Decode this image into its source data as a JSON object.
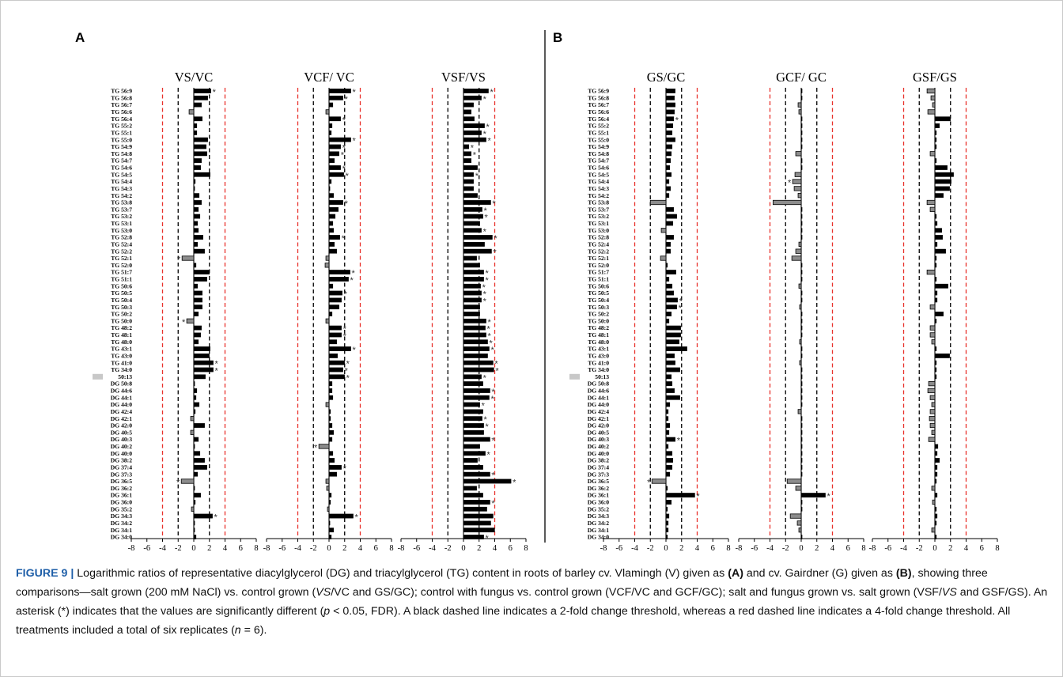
{
  "panels": [
    {
      "letter": "A"
    },
    {
      "letter": "B"
    }
  ],
  "caption": {
    "label": "FIGURE 9 |",
    "t1": " Logarithmic ratios of representative diacylglycerol (DG) and triacylglycerol (TG) content in roots of barley cv. Vlamingh (V) given as ",
    "b1": "(A)",
    "t2": " and cv. Gairdner (G) given as ",
    "b2": "(B)",
    "t3": ", showing three comparisons—salt grown (200 mM NaCl) vs. control grown (",
    "i1": "VS",
    "t4": "/VC and GS/GC); control with fungus vs. control grown (VCF/VC and GCF/GC); salt and fungus grown vs. salt grown (VSF/",
    "i2": "VS",
    "t5": " and GSF/GS). An asterisk (*) indicates that the values are significantly different (",
    "i3": "p",
    "t6": " < 0.05, FDR). A black dashed line indicates a 2-fold change threshold, whereas a red dashed line indicates a 4-fold change threshold. All treatments included a total of six replicates (",
    "i4": "n",
    "t7": " = 6)."
  },
  "colors": {
    "sig_bar": "#000000",
    "nonsig_bar": "#8c8c8c",
    "threshold_2fold": "#000000",
    "threshold_4fold": "#e8312b"
  },
  "chart_data": [
    {
      "type": "bar",
      "orientation": "horizontal",
      "panel": "A",
      "categories_A": [
        "TG 56:9",
        "TG 56:8",
        "TG 56:7",
        "TG 56:6",
        "TG 56:4",
        "TG 55:2",
        "TG 55:1",
        "TG 55:0",
        "TG 54:9",
        "TG 54:8",
        "TG 54:7",
        "TG 54:6",
        "TG 54:5",
        "TG 54:4",
        "TG 54:3",
        "TG 54:2",
        "TG 53:8",
        "TG 53:7",
        "TG 53:2",
        "TG 53:1",
        "TG 53:0",
        "TG 52:8",
        "TG 52:4",
        "TG 52:2",
        "TG 52:1",
        "TG 52:0",
        "TG 51:7",
        "TG 51:1",
        "TG 50:6",
        "TG 50:5",
        "TG 50:4",
        "TG 50:3",
        "TG 50:2",
        "TG 50:0",
        "TG 48:2",
        "TG 48:1",
        "TG 48:0",
        "TG 43:1",
        "TG 43:0",
        "TG 41:0",
        "TG 34:0",
        "50:13",
        "DG 50:8",
        "DG 44:6",
        "DG 44:1",
        "DG 44:0",
        "DG 42:4",
        "DG 42:1",
        "DG 42:0",
        "DG 40:5",
        "DG 40:3",
        "DG 40:2",
        "DG 40:0",
        "DG 38:2",
        "DG 37:4",
        "DG 37:3",
        "DG 36:5",
        "DG 36:2",
        "DG 36:1",
        "DG 36:0",
        "DG 35:2",
        "DG 34:3",
        "DG 34:2",
        "DG 34:1",
        "DG 34:0"
      ],
      "xlim": [
        -8,
        8
      ],
      "xticks": [
        -8,
        -6,
        -4,
        -2,
        0,
        2,
        4,
        6,
        8
      ],
      "thresholds": {
        "two_fold": [
          -2,
          2
        ],
        "four_fold": [
          -4,
          4
        ]
      },
      "subplots": [
        {
          "title": "VS/VC",
          "values": [
            2.2,
            1.8,
            1.0,
            -0.6,
            1.1,
            0.4,
            0.4,
            1.8,
            1.6,
            1.7,
            1.0,
            0.9,
            2.1,
            0.2,
            0.1,
            0.7,
            1.0,
            0.6,
            0.8,
            0.5,
            0.6,
            1.2,
            0.5,
            1.4,
            -1.5,
            0.3,
            2.0,
            1.7,
            0.5,
            1.1,
            1.1,
            1.1,
            0.6,
            -0.9,
            1.0,
            0.9,
            0.6,
            2.1,
            2.0,
            2.5,
            2.5,
            1.5,
            0.1,
            0.4,
            0.3,
            0.7,
            0.2,
            -0.4,
            1.4,
            -0.4,
            0.6,
            0.1,
            0.8,
            1.4,
            1.7,
            0.5,
            -1.6,
            0.1,
            0.9,
            0.2,
            -0.3,
            2.4,
            0.1,
            0.1,
            0.3
          ],
          "sig": [
            1,
            0,
            0,
            0,
            0,
            0,
            0,
            0,
            0,
            0,
            0,
            0,
            0,
            0,
            0,
            0,
            0,
            0,
            0,
            0,
            0,
            0,
            0,
            0,
            1,
            0,
            0,
            0,
            0,
            0,
            0,
            0,
            0,
            1,
            0,
            0,
            0,
            0,
            0,
            1,
            1,
            0,
            0,
            0,
            0,
            0,
            0,
            0,
            0,
            0,
            0,
            0,
            0,
            0,
            0,
            0,
            1,
            0,
            0,
            0,
            0,
            1,
            0,
            0,
            0
          ]
        },
        {
          "title": "VCF/ VC",
          "values": [
            2.8,
            1.8,
            0.5,
            -0.4,
            1.5,
            0.4,
            0.3,
            2.8,
            1.5,
            1.3,
            0.7,
            1.5,
            1.9,
            0.3,
            0.1,
            0.6,
            1.8,
            1.2,
            0.8,
            0.5,
            0.6,
            1.4,
            0.7,
            1.0,
            -0.4,
            -0.5,
            2.7,
            2.5,
            0.5,
            1.7,
            1.6,
            1.3,
            0.4,
            -0.4,
            1.6,
            1.6,
            1.0,
            2.8,
            1.1,
            2.0,
            1.8,
            2.0,
            0.4,
            0.4,
            0.5,
            -0.4,
            0.2,
            0.2,
            0.4,
            0.6,
            0.4,
            -1.3,
            0.5,
            0.7,
            1.6,
            1.0,
            -0.4,
            -0.3,
            0.3,
            0.2,
            -0.2,
            3.1,
            0.1,
            0.6,
            0.3
          ],
          "sig": [
            1,
            1,
            0,
            0,
            1,
            0,
            0,
            1,
            1,
            1,
            0,
            1,
            1,
            0,
            0,
            0,
            1,
            0,
            0,
            0,
            0,
            1,
            0,
            0,
            0,
            0,
            1,
            1,
            0,
            1,
            0,
            0,
            0,
            0,
            1,
            1,
            0,
            1,
            0,
            1,
            1,
            1,
            0,
            0,
            0,
            0,
            0,
            0,
            0,
            0,
            0,
            1,
            0,
            0,
            1,
            0,
            0,
            0,
            0,
            0,
            0,
            1,
            0,
            0,
            0
          ]
        },
        {
          "title": "VSF/VS",
          "values": [
            3.2,
            2.3,
            1.3,
            1.0,
            1.4,
            2.7,
            2.3,
            2.9,
            0.7,
            1.0,
            1.0,
            1.8,
            1.3,
            1.3,
            1.3,
            1.8,
            3.5,
            2.4,
            2.5,
            2.1,
            2.3,
            3.7,
            2.7,
            3.6,
            1.7,
            2.1,
            2.6,
            2.6,
            2.2,
            2.3,
            2.3,
            2.1,
            2.1,
            2.9,
            2.8,
            2.9,
            3.1,
            3.3,
            3.1,
            3.8,
            3.9,
            2.3,
            2.5,
            3.4,
            3.3,
            2.1,
            2.5,
            2.4,
            2.6,
            2.6,
            3.4,
            2.1,
            2.8,
            1.8,
            2.5,
            3.4,
            6.1,
            1.7,
            2.5,
            3.4,
            3.0,
            3.8,
            3.5,
            4.0,
            2.6
          ],
          "sig": [
            1,
            1,
            0,
            0,
            0,
            1,
            1,
            1,
            1,
            1,
            0,
            0,
            1,
            0,
            0,
            0,
            1,
            1,
            1,
            0,
            1,
            1,
            0,
            1,
            0,
            0,
            1,
            1,
            1,
            1,
            1,
            0,
            0,
            1,
            1,
            1,
            1,
            1,
            0,
            1,
            1,
            1,
            0,
            1,
            1,
            1,
            0,
            1,
            1,
            0,
            1,
            0,
            1,
            0,
            0,
            1,
            1,
            0,
            0,
            1,
            0,
            0,
            0,
            0,
            1
          ]
        }
      ]
    },
    {
      "type": "bar",
      "orientation": "horizontal",
      "panel": "B",
      "categories_B": [
        "TG 56:9",
        "TG 56:8",
        "TG 56:7",
        "TG 56:6",
        "TG 56:4",
        "TG 55:2",
        "TG 55:1",
        "TG 55:0",
        "TG 54:9",
        "TG 54:8",
        "TG 54:7",
        "TG 54:6",
        "TG 54:5",
        "TG 54:4",
        "TG 54:3",
        "TG 54:2",
        "TG 53:8",
        "TG 53:7",
        "TG 53:2",
        "TG 53:1",
        "TG 53:0",
        "TG 52:8",
        "TG 52:4",
        "TG 52:2",
        "TG 52:1",
        "TG 52:0",
        "TG 51:7",
        "TG 51:1",
        "TG 50:6",
        "TG 50:5",
        "TG 50:4",
        "TG 50:3",
        "TG 50:2",
        "TG 50:0",
        "TG 48:2",
        "TG 48:1",
        "TG 48:0",
        "TG 43:1",
        "TG 43:0",
        "TG 41:0",
        "TG 34:0",
        "50:13",
        "DG 50:8",
        "DG 44:6",
        "DG 44:1",
        "DG 44:0",
        "DG 42:4",
        "DG 42:1",
        "DG 42:0",
        "DG 40:5",
        "DG 40:3",
        "DG 40:2",
        "DG 40:0",
        "DG 38:2",
        "DG 37:4",
        "DG 37:3",
        "DG 36:5",
        "DG 36:2",
        "DG 36:1",
        "DG 36:0",
        "DG 35:2",
        "DG 34:3",
        "DG 34:2",
        "DG 34:1",
        "DG 34:0"
      ],
      "xlim": [
        -8,
        8
      ],
      "xticks": [
        -8,
        -6,
        -4,
        -2,
        0,
        2,
        4,
        6,
        8
      ],
      "thresholds": {
        "two_fold": [
          -2,
          2
        ],
        "four_fold": [
          -4,
          4
        ]
      },
      "subplots": [
        {
          "title": "GS/GC",
          "values": [
            1.2,
            1.1,
            1.2,
            1.1,
            1.0,
            0.9,
            0.8,
            1.2,
            0.8,
            0.7,
            0.6,
            0.5,
            0.7,
            0.4,
            0.6,
            0.4,
            -2.0,
            1.0,
            1.4,
            0.9,
            -0.6,
            1.0,
            0.6,
            0.6,
            -0.7,
            0.2,
            1.3,
            0.4,
            0.8,
            1.0,
            1.5,
            1.4,
            0.7,
            0.4,
            1.9,
            1.9,
            1.7,
            2.7,
            1.1,
            1.2,
            1.8,
            0.7,
            0.8,
            1.1,
            1.8,
            0.5,
            0.3,
            0.3,
            0.5,
            0.4,
            1.2,
            0.3,
            0.8,
            0.9,
            0.8,
            0.5,
            -1.8,
            0.2,
            3.7,
            0.7,
            0.2,
            0.4,
            0.3,
            0.3,
            0.2
          ],
          "sig": [
            0,
            0,
            0,
            0,
            1,
            0,
            0,
            0,
            0,
            0,
            0,
            0,
            0,
            0,
            0,
            0,
            0,
            0,
            0,
            0,
            0,
            0,
            0,
            0,
            0,
            0,
            0,
            0,
            0,
            0,
            1,
            1,
            0,
            0,
            0,
            0,
            0,
            0,
            0,
            0,
            0,
            0,
            0,
            0,
            0,
            0,
            0,
            0,
            0,
            0,
            1,
            0,
            0,
            0,
            0,
            0,
            1,
            0,
            1,
            0,
            0,
            0,
            0,
            0,
            0
          ]
        },
        {
          "title": "GCF/ GC",
          "values": [
            0.1,
            0.1,
            -0.4,
            -0.3,
            0.1,
            0.1,
            0.1,
            0.1,
            0.1,
            -0.7,
            0.1,
            0.1,
            -0.8,
            -1.1,
            -0.9,
            -0.4,
            -3.6,
            0.1,
            0.1,
            0.1,
            0.1,
            0.1,
            -0.3,
            -0.7,
            -1.2,
            0.1,
            0.1,
            0.1,
            -0.3,
            0.1,
            0.1,
            -0.2,
            0.1,
            0.1,
            0.1,
            0.1,
            -0.2,
            0.1,
            0.1,
            -0.2,
            0.1,
            0.1,
            0.1,
            0.1,
            0.1,
            0.1,
            -0.4,
            0.1,
            0.1,
            0.1,
            0.1,
            0.1,
            0.1,
            0.1,
            0.1,
            0.1,
            -1.8,
            -0.7,
            3.1,
            0.1,
            0.1,
            -1.4,
            -0.5,
            -0.3,
            0.1
          ],
          "sig": [
            0,
            0,
            0,
            0,
            0,
            0,
            0,
            0,
            0,
            0,
            0,
            0,
            0,
            1,
            0,
            0,
            0,
            0,
            0,
            0,
            0,
            0,
            0,
            0,
            0,
            0,
            0,
            0,
            0,
            0,
            0,
            0,
            0,
            0,
            0,
            0,
            0,
            0,
            0,
            0,
            0,
            0,
            0,
            0,
            0,
            0,
            0,
            0,
            0,
            0,
            0,
            0,
            0,
            0,
            0,
            0,
            0,
            0,
            1,
            0,
            0,
            0,
            0,
            0,
            0
          ]
        },
        {
          "title": "GSF/GS",
          "values": [
            -1.0,
            -0.5,
            -0.3,
            -0.9,
            2.0,
            0.6,
            0.2,
            0.2,
            0.2,
            -0.6,
            0.2,
            1.6,
            2.4,
            2.1,
            1.9,
            1.1,
            -1.0,
            -0.6,
            0.2,
            0.3,
            0.9,
            1.0,
            0.3,
            1.4,
            0.2,
            0.2,
            -1.0,
            0.2,
            1.7,
            0.3,
            0.3,
            -0.6,
            1.1,
            0.2,
            -0.6,
            -0.6,
            -0.4,
            0.2,
            1.9,
            0.2,
            0.2,
            0.2,
            -0.8,
            -0.9,
            -0.6,
            -0.4,
            -0.6,
            -0.7,
            -0.6,
            -0.4,
            -0.8,
            0.4,
            0.3,
            0.6,
            0.3,
            0.3,
            0.2,
            -0.4,
            0.3,
            -0.3,
            0.2,
            0.3,
            0.2,
            -0.4,
            0.2
          ],
          "sig": [
            0,
            0,
            0,
            0,
            0,
            0,
            0,
            0,
            0,
            0,
            0,
            0,
            0,
            0,
            0,
            0,
            0,
            0,
            0,
            0,
            0,
            0,
            0,
            0,
            0,
            0,
            0,
            0,
            0,
            0,
            0,
            0,
            0,
            0,
            0,
            0,
            0,
            0,
            0,
            0,
            0,
            0,
            0,
            0,
            0,
            0,
            0,
            0,
            0,
            0,
            0,
            0,
            0,
            0,
            0,
            0,
            0,
            0,
            0,
            0,
            0,
            0,
            0,
            0,
            0
          ]
        }
      ]
    }
  ]
}
